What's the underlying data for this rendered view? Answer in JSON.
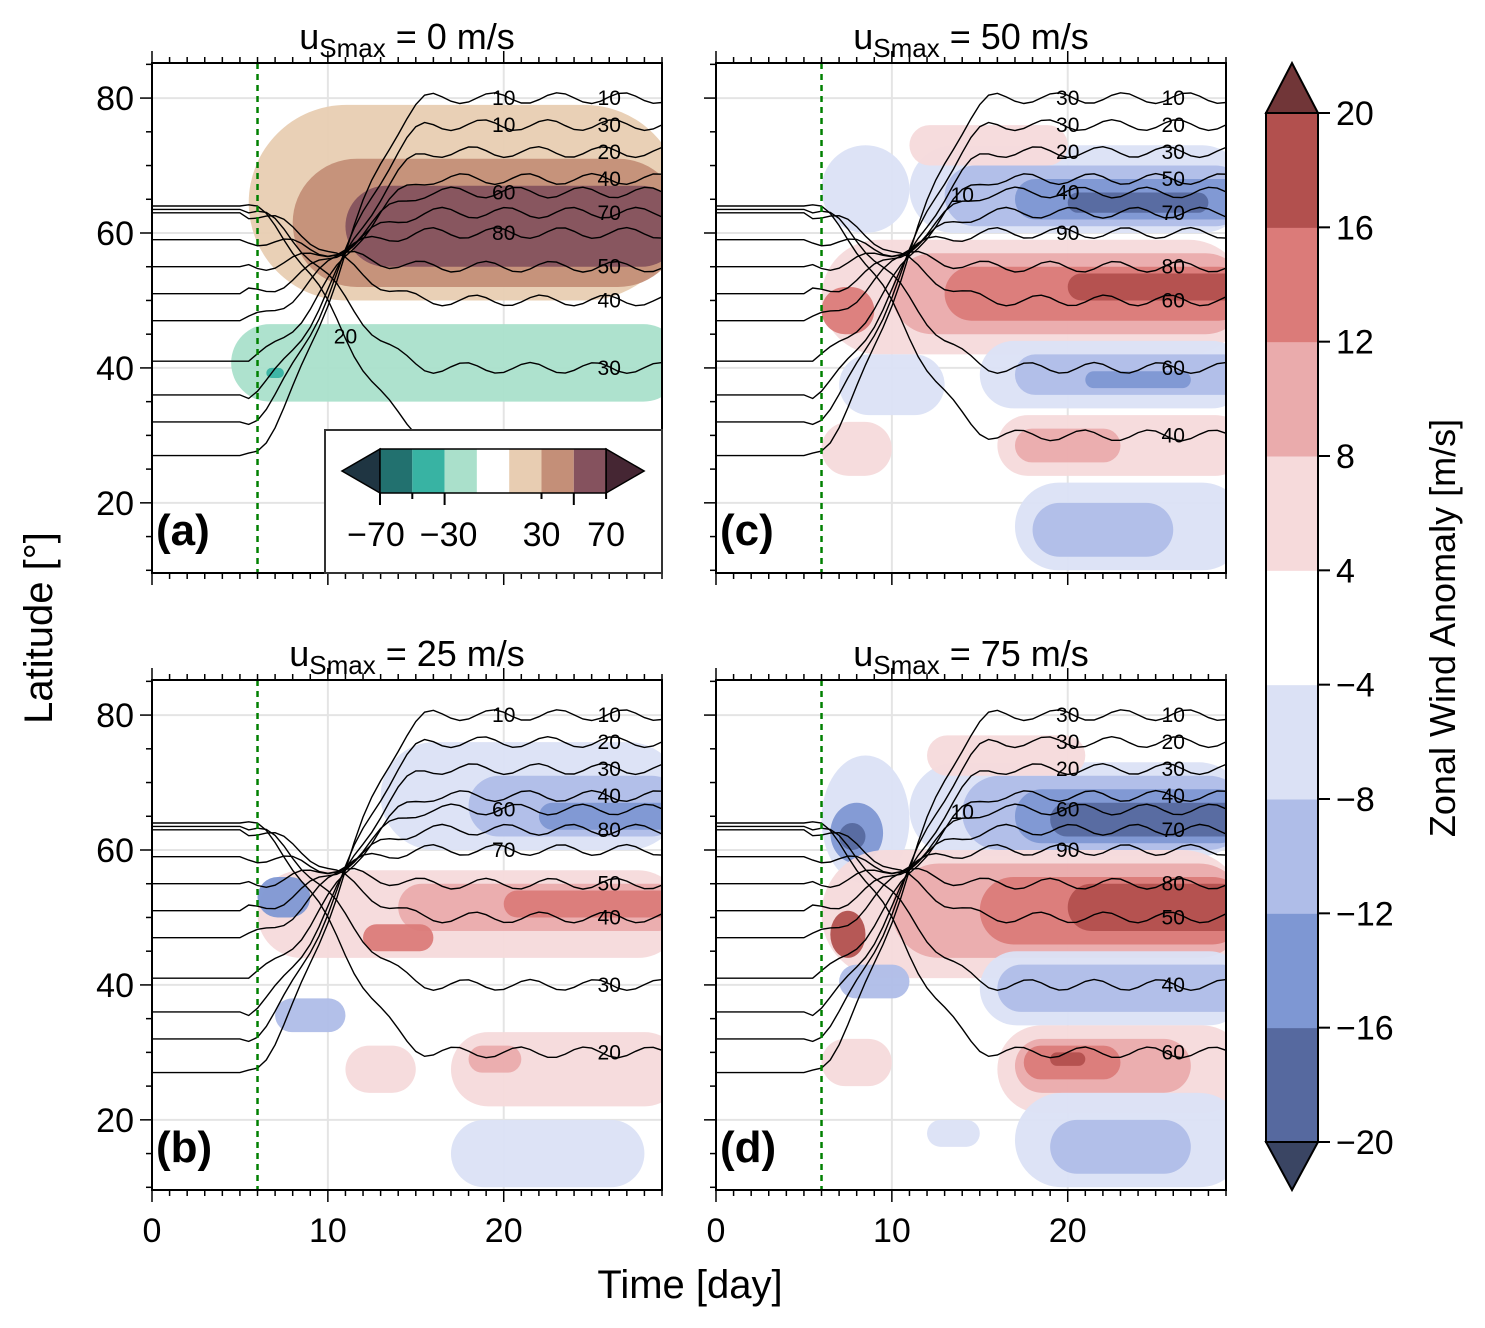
{
  "chart_data": {
    "type": "heatmap",
    "xlabel": "Time [day]",
    "ylabel": "Latitude [°]",
    "xlim": [
      0,
      29
    ],
    "ylim": [
      9.6,
      85.2
    ],
    "xticks": [
      0,
      10,
      20
    ],
    "yticks": [
      20,
      40,
      60,
      80
    ],
    "grid": true,
    "vline_day": 6,
    "vline_color": "#008000",
    "colorbar": {
      "label": "Zonal Wind Anomaly [m/s]",
      "ticks": [
        -20,
        -16,
        -12,
        -8,
        -4,
        4,
        8,
        12,
        16,
        20
      ],
      "colors": [
        "#56699f",
        "#7e97d3",
        "#afbde8",
        "#dbe1f5",
        "#ffffff",
        "#f6dadb",
        "#eaabac",
        "#db7b79",
        "#b2504e"
      ],
      "under": "#3a4563",
      "over": "#713638"
    },
    "inset_colorbar": {
      "ticks": [
        "−70",
        "−30",
        "30",
        "70"
      ],
      "colors": [
        "#22716f",
        "#38b3a3",
        "#aae0cb",
        "#ffffff",
        "#e8cdb2",
        "#c48f78",
        "#85525e"
      ],
      "under": "#1f3542",
      "over": "#452633"
    },
    "panels": [
      {
        "id": "a",
        "label": "(a)",
        "title_main": "u",
        "title_sub": "Smax",
        "title_rest": " = 0 m/s",
        "contour_labels": [
          "10",
          "30",
          "20",
          "40",
          "60",
          "70",
          "80",
          "50",
          "40",
          "30",
          "20",
          "10",
          "10"
        ],
        "blobs": [
          {
            "t": [
              5.5,
              29
            ],
            "lat": [
              50,
              79
            ],
            "c": "#e8cdb2"
          },
          {
            "t": [
              8,
              29
            ],
            "lat": [
              52,
              71
            ],
            "c": "#c48f78"
          },
          {
            "t": [
              11,
              29
            ],
            "lat": [
              55,
              67
            ],
            "c": "#85525e"
          },
          {
            "t": [
              4.5,
              29
            ],
            "lat": [
              35,
              46.5
            ],
            "c": "#aae0cb"
          },
          {
            "t": [
              6.5,
              7.5
            ],
            "lat": [
              38.5,
              40
            ],
            "c": "#38b3a3"
          },
          {
            "t": [
              18,
              27
            ],
            "lat": [
              11,
              17
            ],
            "c": "#eaf7f1"
          }
        ]
      },
      {
        "id": "c",
        "label": "(c)",
        "title_main": "u",
        "title_sub": "Smax",
        "title_rest": " = 50 m/s",
        "contour_labels": [
          "10",
          "20",
          "30",
          "50",
          "40",
          "70",
          "90",
          "80",
          "60",
          "60",
          "40",
          "30",
          "30",
          "20",
          "10"
        ],
        "blobs": [
          {
            "t": [
              6,
              11
            ],
            "lat": [
              60,
              73
            ],
            "c": "#dbe1f5"
          },
          {
            "t": [
              11,
              29
            ],
            "lat": [
              60,
              73
            ],
            "c": "#dbe1f5"
          },
          {
            "t": [
              13,
              29
            ],
            "lat": [
              61,
              70
            ],
            "c": "#afbde8"
          },
          {
            "t": [
              17,
              29
            ],
            "lat": [
              62,
              68
            ],
            "c": "#7e97d3"
          },
          {
            "t": [
              20,
              28
            ],
            "lat": [
              63,
              66
            ],
            "c": "#56699f"
          },
          {
            "t": [
              11,
              20
            ],
            "lat": [
              70,
              76
            ],
            "c": "#f6dadb"
          },
          {
            "t": [
              6,
              29
            ],
            "lat": [
              42,
              59
            ],
            "c": "#f6dadb"
          },
          {
            "t": [
              10,
              29
            ],
            "lat": [
              45,
              57
            ],
            "c": "#eaabac"
          },
          {
            "t": [
              13,
              29
            ],
            "lat": [
              47,
              55
            ],
            "c": "#db7b79"
          },
          {
            "t": [
              20,
              29
            ],
            "lat": [
              50,
              54
            ],
            "c": "#b2504e"
          },
          {
            "t": [
              6,
              9
            ],
            "lat": [
              45,
              52
            ],
            "c": "#db7b79"
          },
          {
            "t": [
              7,
              13
            ],
            "lat": [
              33,
              42
            ],
            "c": "#dbe1f5"
          },
          {
            "t": [
              15,
              29
            ],
            "lat": [
              34,
              44
            ],
            "c": "#dbe1f5"
          },
          {
            "t": [
              17,
              29
            ],
            "lat": [
              36,
              42
            ],
            "c": "#afbde8"
          },
          {
            "t": [
              21,
              27
            ],
            "lat": [
              37,
              39.5
            ],
            "c": "#7e97d3"
          },
          {
            "t": [
              16,
              29
            ],
            "lat": [
              24,
              33
            ],
            "c": "#f6dadb"
          },
          {
            "t": [
              17,
              23
            ],
            "lat": [
              26,
              31
            ],
            "c": "#eaabac"
          },
          {
            "t": [
              6,
              10
            ],
            "lat": [
              24,
              32
            ],
            "c": "#f6dadb"
          },
          {
            "t": [
              17,
              29
            ],
            "lat": [
              10,
              23
            ],
            "c": "#dbe1f5"
          },
          {
            "t": [
              18,
              26
            ],
            "lat": [
              12,
              20
            ],
            "c": "#afbde8"
          }
        ]
      },
      {
        "id": "b",
        "label": "(b)",
        "title_main": "u",
        "title_sub": "Smax",
        "title_rest": " = 25 m/s",
        "contour_labels": [
          "10",
          "20",
          "30",
          "40",
          "60",
          "80",
          "70",
          "50",
          "40",
          "30",
          "20",
          "10"
        ],
        "blobs": [
          {
            "t": [
              13,
              29
            ],
            "lat": [
              60,
              76
            ],
            "c": "#dbe1f5"
          },
          {
            "t": [
              18,
              29
            ],
            "lat": [
              62,
              71
            ],
            "c": "#afbde8"
          },
          {
            "t": [
              22,
              29
            ],
            "lat": [
              63,
              67
            ],
            "c": "#7e97d3"
          },
          {
            "t": [
              6,
              29
            ],
            "lat": [
              44,
              57
            ],
            "c": "#f6dadb"
          },
          {
            "t": [
              14,
              29
            ],
            "lat": [
              48,
              55
            ],
            "c": "#eaabac"
          },
          {
            "t": [
              20,
              29
            ],
            "lat": [
              50,
              54
            ],
            "c": "#db7b79"
          },
          {
            "t": [
              12,
              16
            ],
            "lat": [
              45,
              49
            ],
            "c": "#db7b79"
          },
          {
            "t": [
              6,
              9
            ],
            "lat": [
              50,
              56
            ],
            "c": "#7e97d3"
          },
          {
            "t": [
              7,
              11
            ],
            "lat": [
              33,
              38
            ],
            "c": "#afbde8"
          },
          {
            "t": [
              17,
              29
            ],
            "lat": [
              22,
              33
            ],
            "c": "#f6dadb"
          },
          {
            "t": [
              18,
              21
            ],
            "lat": [
              27,
              31
            ],
            "c": "#eaabac"
          },
          {
            "t": [
              11,
              15
            ],
            "lat": [
              24,
              31
            ],
            "c": "#f6dadb"
          },
          {
            "t": [
              17,
              28
            ],
            "lat": [
              10,
              20
            ],
            "c": "#dbe1f5"
          }
        ]
      },
      {
        "id": "d",
        "label": "(d)",
        "title_main": "u",
        "title_sub": "Smax",
        "title_rest": " = 75 m/s",
        "contour_labels": [
          "10",
          "20",
          "30",
          "40",
          "60",
          "70",
          "90",
          "80",
          "50",
          "40",
          "60",
          "30",
          "30",
          "20",
          "10"
        ],
        "blobs": [
          {
            "t": [
              6,
              11
            ],
            "lat": [
              55,
              74
            ],
            "c": "#dbe1f5"
          },
          {
            "t": [
              6.5,
              9.5
            ],
            "lat": [
              58,
              67
            ],
            "c": "#7e97d3"
          },
          {
            "t": [
              7,
              8.5
            ],
            "lat": [
              60,
              64
            ],
            "c": "#56699f"
          },
          {
            "t": [
              11,
              29
            ],
            "lat": [
              59,
              73
            ],
            "c": "#dbe1f5"
          },
          {
            "t": [
              14,
              29
            ],
            "lat": [
              60,
              71
            ],
            "c": "#afbde8"
          },
          {
            "t": [
              17,
              29
            ],
            "lat": [
              61,
              69
            ],
            "c": "#7e97d3"
          },
          {
            "t": [
              19,
              29
            ],
            "lat": [
              62,
              67
            ],
            "c": "#56699f"
          },
          {
            "t": [
              12,
              21
            ],
            "lat": [
              71,
              77
            ],
            "c": "#f6dadb"
          },
          {
            "t": [
              6,
              29
            ],
            "lat": [
              41,
              60
            ],
            "c": "#f6dadb"
          },
          {
            "t": [
              10,
              29
            ],
            "lat": [
              44,
              58
            ],
            "c": "#eaabac"
          },
          {
            "t": [
              15,
              29
            ],
            "lat": [
              46,
              56
            ],
            "c": "#db7b79"
          },
          {
            "t": [
              20,
              29
            ],
            "lat": [
              48,
              55
            ],
            "c": "#b2504e"
          },
          {
            "t": [
              6.5,
              8.5
            ],
            "lat": [
              44,
              51
            ],
            "c": "#b2504e"
          },
          {
            "t": [
              7,
              11
            ],
            "lat": [
              38,
              43
            ],
            "c": "#afbde8"
          },
          {
            "t": [
              15,
              29
            ],
            "lat": [
              34,
              45
            ],
            "c": "#dbe1f5"
          },
          {
            "t": [
              16,
              29
            ],
            "lat": [
              36,
              43
            ],
            "c": "#afbde8"
          },
          {
            "t": [
              16,
              29
            ],
            "lat": [
              21,
              34
            ],
            "c": "#f6dadb"
          },
          {
            "t": [
              17,
              27
            ],
            "lat": [
              24,
              32
            ],
            "c": "#eaabac"
          },
          {
            "t": [
              17.5,
              23
            ],
            "lat": [
              26,
              31
            ],
            "c": "#db7b79"
          },
          {
            "t": [
              19,
              21
            ],
            "lat": [
              28,
              30
            ],
            "c": "#b2504e"
          },
          {
            "t": [
              6,
              10
            ],
            "lat": [
              25,
              32
            ],
            "c": "#f6dadb"
          },
          {
            "t": [
              17,
              29
            ],
            "lat": [
              10,
              24
            ],
            "c": "#dbe1f5"
          },
          {
            "t": [
              19,
              27
            ],
            "lat": [
              12,
              20
            ],
            "c": "#afbde8"
          },
          {
            "t": [
              12,
              15
            ],
            "lat": [
              16,
              20
            ],
            "c": "#dbe1f5"
          }
        ]
      }
    ],
    "contours": [
      {
        "v": 10,
        "lat0": 27,
        "lat1": 80
      },
      {
        "v": 20,
        "lat0": 32,
        "lat1": 76
      },
      {
        "v": 30,
        "lat0": 36,
        "lat1": 72
      },
      {
        "v": 40,
        "lat0": 41,
        "lat1": 68
      },
      {
        "v": 50,
        "lat0": 47,
        "lat1": 66
      },
      {
        "v": 60,
        "lat0": 51,
        "lat1": 63
      },
      {
        "v": 70,
        "lat0": 55,
        "lat1": 60
      },
      {
        "v": 60,
        "lat0": 59,
        "lat1": 55
      },
      {
        "v": 40,
        "lat0": 63,
        "lat1": 50
      },
      {
        "v": 20,
        "lat0": 63.5,
        "lat1": 40
      },
      {
        "v": 10,
        "lat0": 64,
        "lat1": 30
      }
    ]
  }
}
